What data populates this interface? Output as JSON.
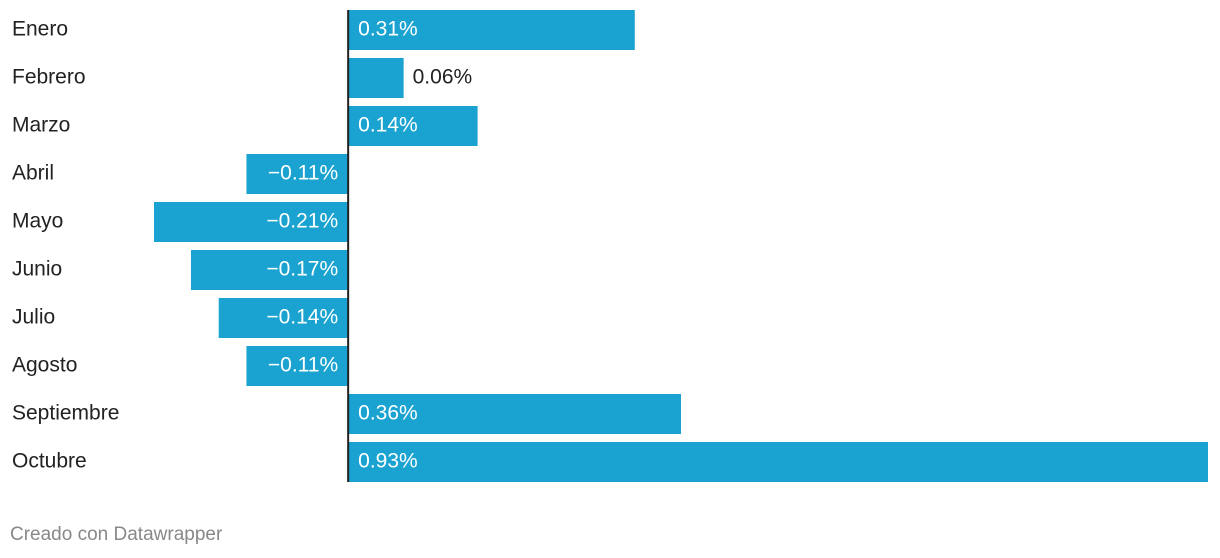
{
  "chart_data": {
    "type": "bar",
    "orientation": "horizontal",
    "categories": [
      "Enero",
      "Febrero",
      "Marzo",
      "Abril",
      "Mayo",
      "Junio",
      "Julio",
      "Agosto",
      "Septiembre",
      "Octubre"
    ],
    "values": [
      0.31,
      0.06,
      0.14,
      -0.11,
      -0.21,
      -0.17,
      -0.14,
      -0.11,
      0.36,
      0.93
    ],
    "value_labels": [
      "0.31%",
      "0.06%",
      "0.14%",
      "−0.11%",
      "−0.21%",
      "−0.17%",
      "−0.14%",
      "−0.11%",
      "0.36%",
      "0.93%"
    ],
    "color": "#1aa3d0",
    "xlim": [
      -0.21,
      0.93
    ],
    "credit": "Creado con Datawrapper"
  }
}
